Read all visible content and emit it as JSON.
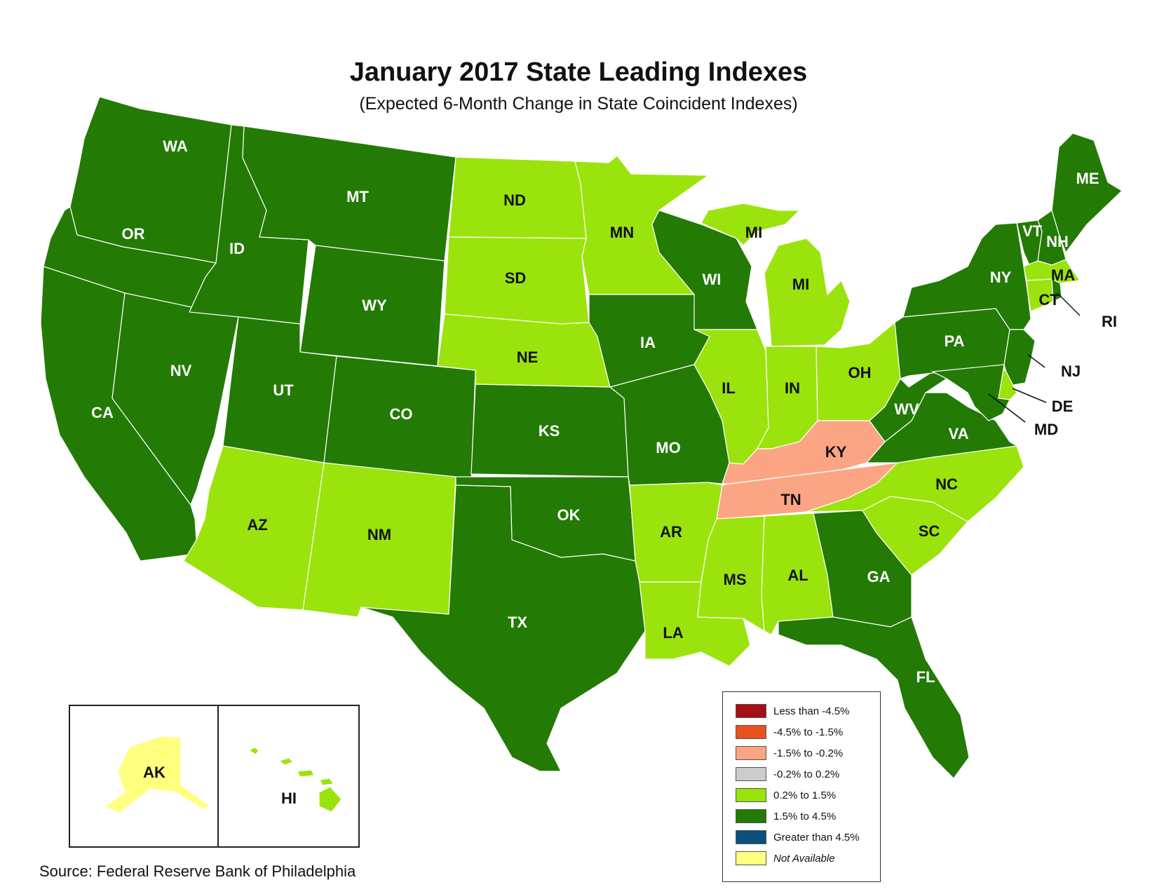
{
  "title": "January 2017 State Leading Indexes",
  "subtitle": "(Expected 6-Month Change in State Coincident Indexes)",
  "source": "Source: Federal Reserve Bank of Philadelphia",
  "colors": {
    "lt_-4.5": "#a50f15",
    "-4.5_-1.5": "#e8511c",
    "-1.5_-0.2": "#fba585",
    "-0.2_0.2": "#cccccc",
    "0.2_1.5": "#9be30c",
    "1.5_4.5": "#237a05",
    "gt_4.5": "#0b4f7c",
    "na": "#ffff80"
  },
  "legend": [
    {
      "label": "Less than -4.5%",
      "key": "lt_-4.5",
      "italic": false
    },
    {
      "label": "-4.5% to -1.5%",
      "key": "-4.5_-1.5",
      "italic": false
    },
    {
      "label": "-1.5% to -0.2%",
      "key": "-1.5_-0.2",
      "italic": false
    },
    {
      "label": "-0.2% to 0.2%",
      "key": "-0.2_0.2",
      "italic": false
    },
    {
      "label": "0.2% to 1.5%",
      "key": "0.2_1.5",
      "italic": false
    },
    {
      "label": "1.5% to 4.5%",
      "key": "1.5_4.5",
      "italic": false
    },
    {
      "label": "Greater than 4.5%",
      "key": "gt_4.5",
      "italic": false
    },
    {
      "label": "Not Available",
      "key": "na",
      "italic": true
    }
  ],
  "states": {
    "WA": "1.5_4.5",
    "OR": "1.5_4.5",
    "CA": "1.5_4.5",
    "ID": "1.5_4.5",
    "NV": "1.5_4.5",
    "MT": "1.5_4.5",
    "WY": "1.5_4.5",
    "UT": "1.5_4.5",
    "CO": "1.5_4.5",
    "AZ": "0.2_1.5",
    "NM": "0.2_1.5",
    "ND": "0.2_1.5",
    "SD": "0.2_1.5",
    "NE": "0.2_1.5",
    "KS": "1.5_4.5",
    "OK": "1.5_4.5",
    "TX": "1.5_4.5",
    "MN": "0.2_1.5",
    "IA": "1.5_4.5",
    "MO": "1.5_4.5",
    "AR": "0.2_1.5",
    "LA": "0.2_1.5",
    "WI": "1.5_4.5",
    "MI": "0.2_1.5",
    "IL": "0.2_1.5",
    "IN": "0.2_1.5",
    "OH": "0.2_1.5",
    "KY": "-1.5_-0.2",
    "TN": "-1.5_-0.2",
    "MS": "0.2_1.5",
    "AL": "0.2_1.5",
    "GA": "1.5_4.5",
    "FL": "1.5_4.5",
    "SC": "0.2_1.5",
    "NC": "0.2_1.5",
    "VA": "1.5_4.5",
    "WV": "1.5_4.5",
    "PA": "1.5_4.5",
    "NY": "1.5_4.5",
    "VT": "1.5_4.5",
    "NH": "1.5_4.5",
    "ME": "1.5_4.5",
    "MA": "0.2_1.5",
    "CT": "0.2_1.5",
    "RI": "1.5_4.5",
    "NJ": "1.5_4.5",
    "DE": "0.2_1.5",
    "MD": "1.5_4.5",
    "AK": "na",
    "HI": "0.2_1.5"
  },
  "labels": {
    "WA": "WA",
    "OR": "OR",
    "CA": "CA",
    "ID": "ID",
    "NV": "NV",
    "MT": "MT",
    "WY": "WY",
    "UT": "UT",
    "CO": "CO",
    "AZ": "AZ",
    "NM": "NM",
    "ND": "ND",
    "SD": "SD",
    "NE": "NE",
    "KS": "KS",
    "OK": "OK",
    "TX": "TX",
    "MN": "MN",
    "IA": "IA",
    "MO": "MO",
    "AR": "AR",
    "LA": "LA",
    "WI": "WI",
    "MI_UP": "MI",
    "MI": "MI",
    "IL": "IL",
    "IN": "IN",
    "OH": "OH",
    "KY": "KY",
    "TN": "TN",
    "MS": "MS",
    "AL": "AL",
    "GA": "GA",
    "FL": "FL",
    "SC": "SC",
    "NC": "NC",
    "VA": "VA",
    "WV": "WV",
    "PA": "PA",
    "NY": "NY",
    "VT": "VT",
    "NH": "NH",
    "ME": "ME",
    "MA": "MA",
    "CT": "CT",
    "RI": "RI",
    "NJ": "NJ",
    "DE": "DE",
    "MD": "MD",
    "AK": "AK",
    "HI": "HI"
  }
}
